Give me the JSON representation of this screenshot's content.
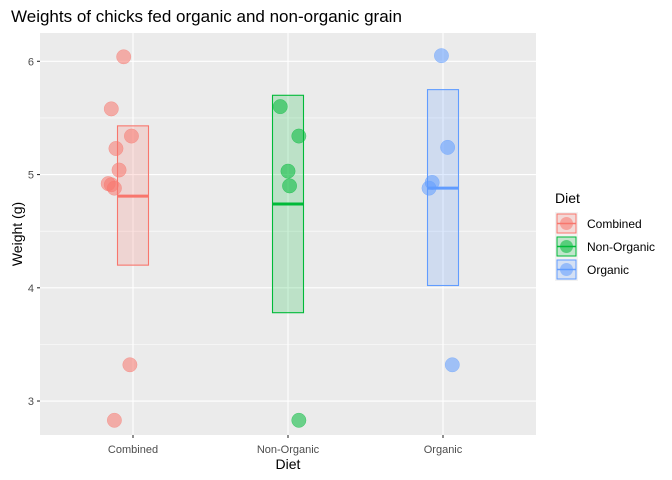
{
  "chart_data": {
    "type": "crossbar-jitter",
    "title": "Weights of chicks fed organic and non-organic grain",
    "xlabel": "Diet",
    "ylabel": "Weight (g)",
    "categories": [
      "Combined",
      "Non-Organic",
      "Organic"
    ],
    "ylim": [
      2.7,
      6.25
    ],
    "yticks": [
      3,
      4,
      5,
      6
    ],
    "grid": true,
    "legend": {
      "title": "Diet",
      "position": "right",
      "entries": [
        "Combined",
        "Non-Organic",
        "Organic"
      ]
    },
    "colors": {
      "Combined": "#F8766D",
      "Non-Organic": "#00BA38",
      "Organic": "#619CFF",
      "panel": "#EBEBEB",
      "grid": "#FFFFFF"
    },
    "series": [
      {
        "name": "Combined",
        "mean": 4.81,
        "lower": 4.2,
        "upper": 5.43,
        "points": [
          {
            "jitter": -0.12,
            "value": 2.83
          },
          {
            "jitter": -0.02,
            "value": 3.32
          },
          {
            "jitter": -0.16,
            "value": 4.92
          },
          {
            "jitter": -0.14,
            "value": 4.91
          },
          {
            "jitter": -0.12,
            "value": 4.88
          },
          {
            "jitter": -0.09,
            "value": 5.04
          },
          {
            "jitter": -0.11,
            "value": 5.23
          },
          {
            "jitter": -0.01,
            "value": 5.34
          },
          {
            "jitter": -0.14,
            "value": 5.58
          },
          {
            "jitter": -0.06,
            "value": 6.04
          }
        ]
      },
      {
        "name": "Non-Organic",
        "mean": 4.74,
        "lower": 3.78,
        "upper": 5.7,
        "points": [
          {
            "jitter": 0.07,
            "value": 2.83
          },
          {
            "jitter": 0.01,
            "value": 4.9
          },
          {
            "jitter": 0.0,
            "value": 5.03
          },
          {
            "jitter": 0.07,
            "value": 5.34
          },
          {
            "jitter": -0.05,
            "value": 5.6
          }
        ]
      },
      {
        "name": "Organic",
        "mean": 4.88,
        "lower": 4.02,
        "upper": 5.75,
        "points": [
          {
            "jitter": 0.06,
            "value": 3.32
          },
          {
            "jitter": -0.09,
            "value": 4.88
          },
          {
            "jitter": -0.07,
            "value": 4.93
          },
          {
            "jitter": 0.03,
            "value": 5.24
          },
          {
            "jitter": -0.01,
            "value": 6.05
          }
        ]
      }
    ]
  }
}
